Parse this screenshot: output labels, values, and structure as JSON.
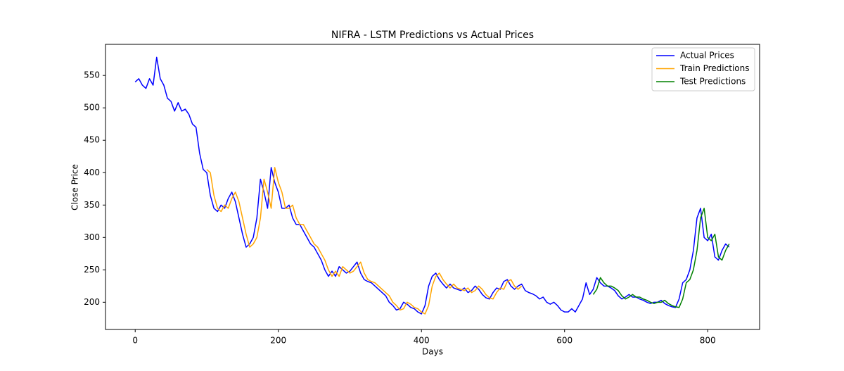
{
  "chart_data": {
    "type": "line",
    "title": "NIFRA - LSTM Predictions vs Actual Prices",
    "x_label": "Days",
    "y_label": "Close Price",
    "xlim": [
      -41.5,
      872.5
    ],
    "ylim": [
      158,
      598
    ],
    "xticks": [
      0,
      200,
      400,
      600,
      800
    ],
    "yticks": [
      200,
      250,
      300,
      350,
      400,
      450,
      500,
      550
    ],
    "grid": false,
    "legend": "upper right",
    "series": [
      {
        "name": "Actual Prices",
        "color": "#0000ff",
        "x": [
          0,
          5,
          10,
          15,
          20,
          25,
          30,
          35,
          40,
          45,
          50,
          55,
          60,
          65,
          70,
          75,
          80,
          85,
          90,
          95,
          100,
          105,
          110,
          115,
          120,
          125,
          130,
          135,
          140,
          145,
          150,
          155,
          160,
          165,
          170,
          175,
          180,
          185,
          190,
          195,
          200,
          205,
          210,
          215,
          220,
          225,
          230,
          235,
          240,
          245,
          250,
          255,
          260,
          265,
          270,
          275,
          280,
          285,
          290,
          295,
          300,
          305,
          310,
          315,
          320,
          325,
          330,
          335,
          340,
          345,
          350,
          355,
          360,
          365,
          370,
          375,
          380,
          385,
          390,
          395,
          400,
          405,
          410,
          415,
          420,
          425,
          430,
          435,
          440,
          445,
          450,
          455,
          460,
          465,
          470,
          475,
          480,
          485,
          490,
          495,
          500,
          505,
          510,
          515,
          520,
          525,
          530,
          535,
          540,
          545,
          550,
          555,
          560,
          565,
          570,
          575,
          580,
          585,
          590,
          595,
          600,
          605,
          610,
          615,
          620,
          625,
          630,
          635,
          640,
          645,
          650,
          655,
          660,
          665,
          670,
          675,
          680,
          685,
          690,
          695,
          700,
          705,
          710,
          715,
          720,
          725,
          730,
          735,
          740,
          745,
          750,
          755,
          760,
          765,
          770,
          775,
          780,
          785,
          790,
          795,
          800,
          805,
          810,
          815,
          820,
          825,
          830
        ],
        "values": [
          540,
          545,
          535,
          530,
          545,
          535,
          578,
          545,
          535,
          515,
          510,
          495,
          508,
          495,
          498,
          490,
          475,
          470,
          430,
          405,
          400,
          365,
          345,
          340,
          350,
          345,
          360,
          370,
          355,
          330,
          305,
          285,
          290,
          300,
          330,
          390,
          370,
          345,
          408,
          385,
          370,
          345,
          345,
          350,
          330,
          320,
          320,
          310,
          300,
          290,
          285,
          275,
          265,
          250,
          240,
          248,
          240,
          255,
          250,
          245,
          248,
          255,
          262,
          245,
          235,
          232,
          230,
          225,
          220,
          215,
          210,
          200,
          195,
          188,
          190,
          200,
          197,
          192,
          190,
          185,
          182,
          195,
          225,
          240,
          245,
          235,
          228,
          222,
          228,
          222,
          220,
          218,
          222,
          215,
          218,
          225,
          220,
          212,
          207,
          205,
          215,
          222,
          220,
          232,
          235,
          225,
          220,
          225,
          228,
          218,
          215,
          213,
          210,
          205,
          208,
          200,
          197,
          200,
          195,
          188,
          185,
          185,
          190,
          185,
          195,
          205,
          230,
          212,
          220,
          238,
          230,
          225,
          225,
          222,
          218,
          210,
          205,
          208,
          212,
          208,
          208,
          205,
          203,
          200,
          198,
          200,
          200,
          203,
          198,
          195,
          193,
          192,
          205,
          230,
          235,
          250,
          280,
          330,
          345,
          300,
          295,
          305,
          270,
          265,
          280,
          290,
          285
        ]
      },
      {
        "name": "Train Predictions",
        "color": "#ffa500",
        "x": [
          100,
          105,
          110,
          115,
          120,
          125,
          130,
          135,
          140,
          145,
          150,
          155,
          160,
          165,
          170,
          175,
          180,
          185,
          190,
          195,
          200,
          205,
          210,
          215,
          220,
          225,
          230,
          235,
          240,
          245,
          250,
          255,
          260,
          265,
          270,
          275,
          280,
          285,
          290,
          295,
          300,
          305,
          310,
          315,
          320,
          325,
          330,
          335,
          340,
          345,
          350,
          355,
          360,
          365,
          370,
          375,
          380,
          385,
          390,
          395,
          400,
          405,
          410,
          415,
          420,
          425,
          430,
          435,
          440,
          445,
          450,
          455,
          460,
          465,
          470,
          475,
          480,
          485,
          490,
          495,
          500,
          505,
          510,
          515,
          520,
          525,
          530,
          535,
          540
        ],
        "values": [
          405,
          400,
          365,
          345,
          340,
          350,
          345,
          360,
          370,
          355,
          330,
          305,
          285,
          290,
          300,
          330,
          390,
          370,
          345,
          408,
          385,
          370,
          345,
          345,
          350,
          330,
          320,
          320,
          310,
          300,
          290,
          285,
          275,
          265,
          250,
          240,
          248,
          240,
          255,
          250,
          245,
          248,
          255,
          262,
          245,
          235,
          232,
          230,
          225,
          220,
          215,
          210,
          200,
          195,
          188,
          190,
          200,
          197,
          192,
          190,
          185,
          182,
          195,
          225,
          240,
          245,
          235,
          228,
          222,
          228,
          222,
          220,
          218,
          222,
          215,
          218,
          225,
          220,
          212,
          207,
          205,
          215,
          222,
          220,
          232,
          235,
          225,
          220,
          225
        ]
      },
      {
        "name": "Test Predictions",
        "color": "#008000",
        "x": [
          640,
          645,
          650,
          655,
          660,
          665,
          670,
          675,
          680,
          685,
          690,
          695,
          700,
          705,
          710,
          715,
          720,
          725,
          730,
          735,
          740,
          745,
          750,
          755,
          760,
          765,
          770,
          775,
          780,
          785,
          790,
          795,
          800,
          805,
          810,
          815,
          820,
          825,
          830
        ],
        "values": [
          212,
          220,
          238,
          230,
          225,
          225,
          222,
          218,
          210,
          205,
          208,
          212,
          208,
          208,
          205,
          203,
          200,
          198,
          200,
          200,
          203,
          198,
          195,
          193,
          192,
          205,
          230,
          235,
          250,
          280,
          330,
          345,
          300,
          295,
          305,
          270,
          265,
          280,
          290
        ]
      }
    ]
  }
}
